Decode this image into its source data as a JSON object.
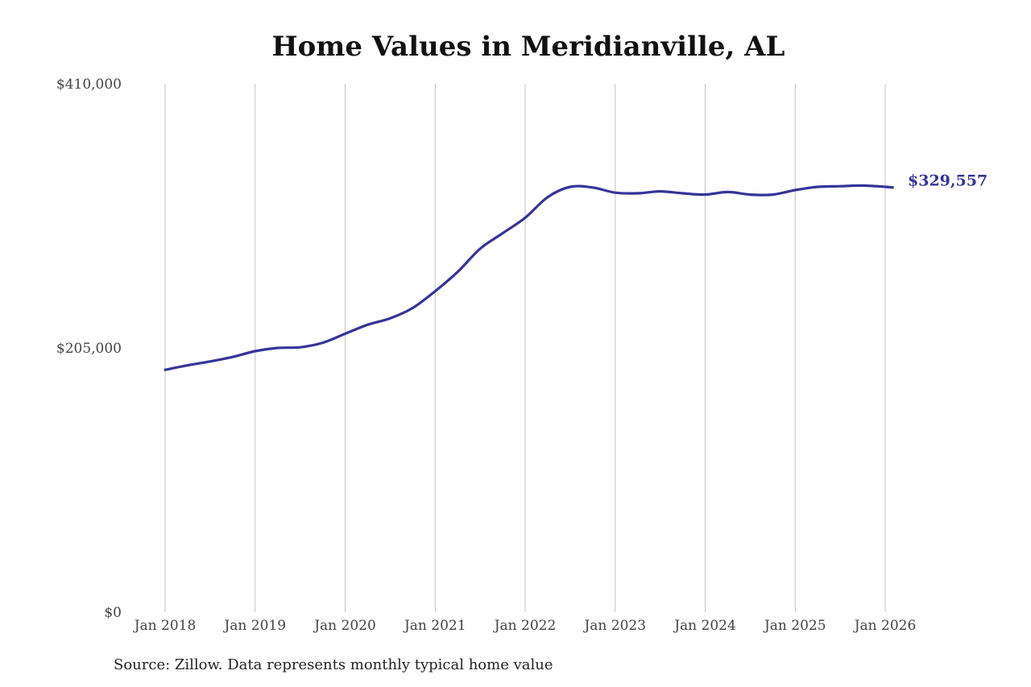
{
  "chart_data": {
    "type": "line",
    "title": "Home Values in Meridianville, AL",
    "xlabel": "",
    "ylabel": "",
    "ylim": [
      0,
      410000
    ],
    "y_ticks": [
      {
        "value": 0,
        "label": "$0"
      },
      {
        "value": 205000,
        "label": "$205,000"
      },
      {
        "value": 410000,
        "label": "$410,000"
      }
    ],
    "x_ticks": [
      {
        "value": "2018-01",
        "label": "Jan 2018"
      },
      {
        "value": "2019-01",
        "label": "Jan 2019"
      },
      {
        "value": "2020-01",
        "label": "Jan 2020"
      },
      {
        "value": "2021-01",
        "label": "Jan 2021"
      },
      {
        "value": "2022-01",
        "label": "Jan 2022"
      },
      {
        "value": "2023-01",
        "label": "Jan 2023"
      },
      {
        "value": "2024-01",
        "label": "Jan 2024"
      },
      {
        "value": "2025-01",
        "label": "Jan 2025"
      },
      {
        "value": "2026-01",
        "label": "Jan 2026"
      }
    ],
    "grid": "vertical",
    "series": [
      {
        "name": "",
        "color": "#35349a",
        "end_label": "$329,557",
        "points": [
          {
            "x": "2018-01",
            "y": 188000
          },
          {
            "x": "2018-04",
            "y": 191500
          },
          {
            "x": "2018-07",
            "y": 194500
          },
          {
            "x": "2018-10",
            "y": 198000
          },
          {
            "x": "2019-01",
            "y": 202500
          },
          {
            "x": "2019-04",
            "y": 205000
          },
          {
            "x": "2019-07",
            "y": 205500
          },
          {
            "x": "2019-10",
            "y": 209000
          },
          {
            "x": "2020-01",
            "y": 216000
          },
          {
            "x": "2020-04",
            "y": 223000
          },
          {
            "x": "2020-07",
            "y": 228000
          },
          {
            "x": "2020-10",
            "y": 236000
          },
          {
            "x": "2021-01",
            "y": 249000
          },
          {
            "x": "2021-04",
            "y": 264000
          },
          {
            "x": "2021-07",
            "y": 282000
          },
          {
            "x": "2021-10",
            "y": 294000
          },
          {
            "x": "2022-01",
            "y": 306000
          },
          {
            "x": "2022-04",
            "y": 322000
          },
          {
            "x": "2022-07",
            "y": 330000
          },
          {
            "x": "2022-10",
            "y": 329500
          },
          {
            "x": "2023-01",
            "y": 325500
          },
          {
            "x": "2023-04",
            "y": 325000
          },
          {
            "x": "2023-07",
            "y": 326500
          },
          {
            "x": "2023-10",
            "y": 325000
          },
          {
            "x": "2024-01",
            "y": 324000
          },
          {
            "x": "2024-04",
            "y": 326000
          },
          {
            "x": "2024-07",
            "y": 324000
          },
          {
            "x": "2024-10",
            "y": 324000
          },
          {
            "x": "2025-01",
            "y": 327500
          },
          {
            "x": "2025-04",
            "y": 330000
          },
          {
            "x": "2025-07",
            "y": 330500
          },
          {
            "x": "2025-10",
            "y": 331000
          },
          {
            "x": "2026-01",
            "y": 330000
          },
          {
            "x": "2026-02",
            "y": 329557
          }
        ]
      }
    ]
  },
  "source_note": "Source: Zillow. Data represents monthly typical home value"
}
